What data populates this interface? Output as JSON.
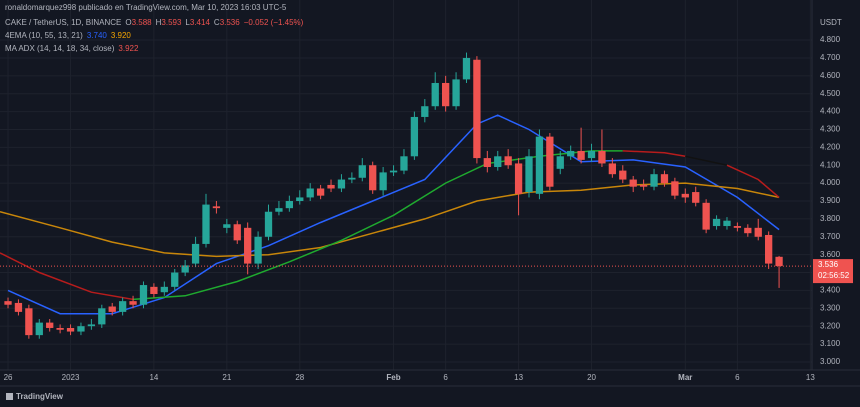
{
  "header": "ronaldomarquez998 publicado en TradingView.com, Mar 10, 2023 16:03 UTC-5",
  "brand": "TradingView",
  "chart_data": {
    "type": "candlestick",
    "symbol": "CAKE / TetherUS, 1D, BINANCE",
    "ohlc_letters": [
      "O",
      "H",
      "L",
      "C"
    ],
    "change": "−0.052 (−1.45%)",
    "currency": "USDT",
    "countdown": "02:56:52",
    "up_color": "#26a69a",
    "down_color": "#ef5350",
    "x": [
      0,
      1,
      2,
      3,
      4,
      5,
      6,
      7,
      8,
      9,
      10,
      11,
      12,
      13,
      14,
      15,
      16,
      17,
      18,
      19,
      20,
      21,
      22,
      23,
      24,
      25,
      26,
      27,
      28,
      29,
      30,
      31,
      32,
      33,
      34,
      35,
      36,
      37,
      38,
      39,
      40,
      41,
      42,
      43,
      44,
      45,
      46,
      47,
      48,
      49,
      50,
      51,
      52,
      53,
      54,
      55,
      56,
      57,
      58,
      59,
      60,
      61,
      62,
      63,
      64,
      65,
      66,
      67,
      68,
      69,
      70,
      71,
      72,
      73,
      74
    ],
    "open": [
      3.34,
      3.33,
      3.3,
      3.15,
      3.22,
      3.19,
      3.19,
      3.17,
      3.2,
      3.21,
      3.31,
      3.28,
      3.34,
      3.32,
      3.42,
      3.39,
      3.42,
      3.5,
      3.55,
      3.66,
      3.87,
      3.75,
      3.77,
      3.75,
      3.55,
      3.7,
      3.84,
      3.86,
      3.9,
      3.92,
      3.97,
      3.99,
      3.97,
      4.02,
      4.03,
      4.1,
      3.96,
      4.06,
      4.07,
      4.15,
      4.37,
      4.43,
      4.56,
      4.43,
      4.58,
      4.69,
      4.14,
      4.09,
      4.15,
      4.11,
      3.95,
      3.94,
      4.26,
      4.08,
      4.15,
      4.18,
      4.14,
      4.18,
      4.11,
      4.07,
      4.02,
      3.99,
      3.98,
      4.05,
      4.01,
      3.94,
      3.95,
      3.89,
      3.76,
      3.76,
      3.76,
      3.75,
      3.75,
      3.71,
      3.588
    ],
    "high": [
      3.36,
      3.35,
      3.32,
      3.24,
      3.24,
      3.21,
      3.21,
      3.22,
      3.24,
      3.32,
      3.33,
      3.36,
      3.37,
      3.45,
      3.44,
      3.45,
      3.52,
      3.57,
      3.7,
      3.94,
      3.9,
      3.8,
      3.79,
      3.78,
      3.73,
      3.88,
      3.9,
      3.93,
      3.96,
      4.0,
      3.99,
      4.02,
      4.05,
      4.06,
      4.14,
      4.12,
      4.09,
      4.1,
      4.19,
      4.4,
      4.47,
      4.62,
      4.6,
      4.62,
      4.73,
      4.71,
      4.18,
      4.18,
      4.19,
      4.14,
      4.19,
      4.3,
      4.28,
      4.18,
      4.21,
      4.31,
      4.22,
      4.3,
      4.14,
      4.1,
      4.04,
      4.02,
      4.08,
      4.07,
      4.03,
      3.97,
      3.98,
      3.91,
      3.82,
      3.81,
      3.78,
      3.77,
      3.8,
      3.73,
      3.593
    ],
    "low": [
      3.3,
      3.26,
      3.13,
      3.13,
      3.17,
      3.16,
      3.15,
      3.15,
      3.18,
      3.19,
      3.26,
      3.26,
      3.3,
      3.3,
      3.36,
      3.37,
      3.4,
      3.48,
      3.53,
      3.64,
      3.83,
      3.72,
      3.66,
      3.49,
      3.52,
      3.68,
      3.82,
      3.84,
      3.88,
      3.9,
      3.91,
      3.95,
      3.95,
      4.0,
      4.01,
      3.94,
      3.93,
      4.04,
      4.05,
      4.13,
      4.34,
      4.41,
      4.4,
      4.41,
      4.56,
      4.11,
      4.06,
      4.07,
      4.08,
      3.82,
      3.92,
      3.91,
      3.96,
      4.05,
      4.13,
      4.11,
      4.12,
      4.09,
      4.03,
      4.0,
      3.95,
      3.96,
      3.96,
      3.98,
      3.91,
      3.89,
      3.87,
      3.72,
      3.74,
      3.74,
      3.73,
      3.7,
      3.68,
      3.52,
      3.414
    ],
    "close": [
      3.32,
      3.28,
      3.15,
      3.22,
      3.19,
      3.18,
      3.17,
      3.2,
      3.21,
      3.3,
      3.28,
      3.34,
      3.32,
      3.43,
      3.38,
      3.42,
      3.5,
      3.54,
      3.66,
      3.88,
      3.86,
      3.77,
      3.68,
      3.55,
      3.7,
      3.84,
      3.86,
      3.9,
      3.92,
      3.97,
      3.93,
      3.97,
      4.02,
      4.03,
      4.1,
      3.96,
      4.06,
      4.07,
      4.15,
      4.37,
      4.43,
      4.56,
      4.43,
      4.58,
      4.7,
      4.14,
      4.09,
      4.15,
      4.1,
      3.94,
      4.15,
      4.26,
      3.98,
      4.15,
      4.18,
      4.13,
      4.18,
      4.11,
      4.05,
      4.02,
      3.98,
      3.98,
      4.05,
      4.0,
      3.93,
      3.92,
      3.89,
      3.74,
      3.8,
      3.79,
      3.75,
      3.72,
      3.7,
      3.55,
      3.536
    ],
    "indicators": [
      {
        "name": "4EMA (10, 55, 13, 21)",
        "readings": [
          "3.740",
          "3.920"
        ],
        "reading_colors": [
          "#2962ff",
          "#f7a600"
        ],
        "lines": [
          {
            "color": "#2962ff",
            "x": [
              0,
              5,
              10,
              15,
              20,
              25,
              30,
              35,
              40,
              45,
              47,
              50,
              55,
              60,
              65,
              70,
              74
            ],
            "values": [
              3.4,
              3.27,
              3.27,
              3.36,
              3.55,
              3.65,
              3.78,
              3.9,
              4.02,
              4.33,
              4.38,
              4.3,
              4.12,
              4.13,
              4.09,
              3.92,
              3.74
            ]
          },
          {
            "color": "#c8860a",
            "x": [
              -0.77,
              5,
              10,
              15,
              20,
              25,
              30,
              35,
              40,
              45,
              50,
              55,
              60,
              65,
              70,
              74
            ],
            "values": [
              3.84,
              3.75,
              3.67,
              3.61,
              3.59,
              3.6,
              3.64,
              3.72,
              3.8,
              3.9,
              3.95,
              3.96,
              3.99,
              4.0,
              3.97,
              3.92
            ]
          }
        ]
      },
      {
        "name": "MA ADX (14, 14, 18, 34, close)",
        "readings": [
          "3.922"
        ],
        "reading_colors": [
          "#ef5350"
        ],
        "lines": [
          {
            "color": "#b71c1c",
            "x": [
              -0.77,
              3,
              8,
              12
            ],
            "values": [
              3.61,
              3.5,
              3.39,
              3.35
            ]
          },
          {
            "color": "#1faa2f",
            "x": [
              12,
              17,
              22,
              27,
              32,
              37,
              42,
              46,
              51,
              56,
              59
            ],
            "values": [
              3.35,
              3.37,
              3.45,
              3.56,
              3.68,
              3.82,
              4.0,
              4.11,
              4.15,
              4.18,
              4.18
            ]
          },
          {
            "color": "#b71c1c",
            "x": [
              59,
              63,
              65
            ],
            "values": [
              4.18,
              4.17,
              4.15
            ]
          },
          {
            "color": "#111111",
            "x": [
              65,
              69
            ],
            "values": [
              4.15,
              4.1
            ]
          },
          {
            "color": "#b71c1c",
            "x": [
              69,
              72,
              74
            ],
            "values": [
              4.1,
              4.02,
              3.92
            ]
          }
        ]
      }
    ],
    "xlim": [
      -0.77,
      77.16
    ],
    "ylim": [
      2.955,
      5.024
    ],
    "xticks": [
      {
        "value": 0,
        "label": "26"
      },
      {
        "value": 6,
        "label": "2023"
      },
      14,
      21,
      28,
      {
        "value": 37,
        "label": "Feb"
      },
      {
        "value": 42,
        "label": "6"
      },
      {
        "value": 49,
        "label": "13"
      },
      {
        "value": 56,
        "label": "20"
      },
      {
        "value": 65,
        "label": "Mar"
      },
      {
        "value": 70,
        "label": "6"
      },
      {
        "value": 77,
        "label": "13"
      }
    ],
    "yticks": [
      {
        "value": 3.0,
        "label": "3.000"
      },
      {
        "value": 3.1,
        "label": "3.100"
      },
      {
        "value": 3.2,
        "label": "3.200"
      },
      {
        "value": 3.3,
        "label": "3.300"
      },
      {
        "value": 3.4,
        "label": "3.400"
      },
      {
        "value": 3.5,
        "label": "3.500"
      },
      {
        "value": 3.6,
        "label": "3.600"
      },
      {
        "value": 3.7,
        "label": "3.700"
      },
      {
        "value": 3.8,
        "label": "3.800"
      },
      {
        "value": 3.9,
        "label": "3.900"
      },
      {
        "value": 4.0,
        "label": "4.000"
      },
      {
        "value": 4.1,
        "label": "4.100"
      },
      {
        "value": 4.2,
        "label": "4.200"
      },
      {
        "value": 4.3,
        "label": "4.300"
      },
      {
        "value": 4.4,
        "label": "4.400"
      },
      {
        "value": 4.5,
        "label": "4.500"
      },
      {
        "value": 4.6,
        "label": "4.600"
      },
      {
        "value": 4.7,
        "label": "4.700"
      },
      {
        "value": 4.8,
        "label": "4.800"
      }
    ],
    "grid": true
  }
}
